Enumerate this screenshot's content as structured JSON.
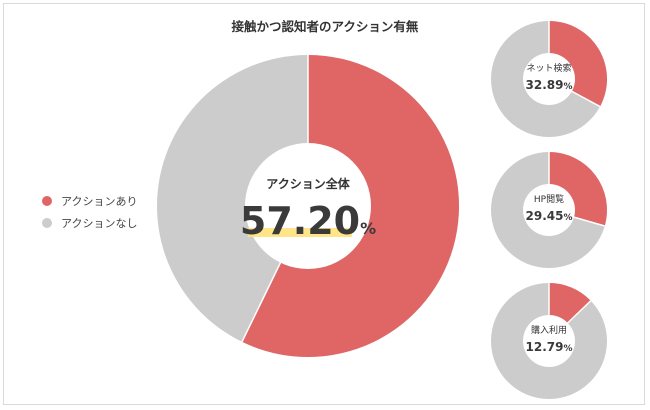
{
  "chart_data": {
    "type": "pie",
    "title": "接触かつ認知者のアクション有無",
    "legend": [
      "アクションあり",
      "アクションなし"
    ],
    "colors": {
      "yes": "#e06666",
      "no": "#cccccc"
    },
    "charts": [
      {
        "label": "アクション全体",
        "value": 57.2,
        "display": "57.20",
        "unit": "%"
      },
      {
        "label": "ネット検索",
        "value": 32.89,
        "display": "32.89",
        "unit": "%"
      },
      {
        "label": "HP閲覧",
        "value": 29.45,
        "display": "29.45",
        "unit": "%"
      },
      {
        "label": "購入利用",
        "value": 12.79,
        "display": "12.79",
        "unit": "%"
      }
    ]
  }
}
